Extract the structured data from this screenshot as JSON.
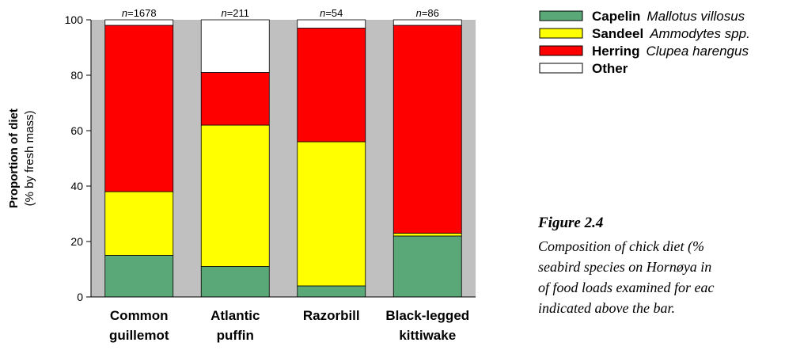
{
  "chart_data": {
    "type": "bar",
    "stacked": true,
    "categories": [
      [
        "Common",
        "guillemot"
      ],
      [
        "Atlantic",
        "puffin"
      ],
      [
        "Razorbill"
      ],
      [
        "Black-legged",
        "kittiwake"
      ]
    ],
    "sample_sizes": [
      "=1678",
      "=211",
      "=54",
      "=86"
    ],
    "n_prefix": "n",
    "series": [
      {
        "name": "Capelin",
        "latin": "Mallotus villosus",
        "color": "#5aa777",
        "values": [
          15,
          11,
          4,
          22
        ]
      },
      {
        "name": "Sandeel",
        "latin": "Ammodytes spp.",
        "color": "#ffff00",
        "values": [
          23,
          51,
          52,
          1
        ]
      },
      {
        "name": "Herring",
        "latin": "Clupea harengus",
        "color": "#ff0000",
        "values": [
          60,
          19,
          41,
          75
        ]
      },
      {
        "name": "Other",
        "latin": "",
        "color": "#ffffff",
        "values": [
          2,
          19,
          3,
          2
        ]
      }
    ],
    "ylabel_line1": "Proportion of diet",
    "ylabel_line2": "(% by fresh mass)",
    "ylim": [
      0,
      100
    ],
    "yticks": [
      0,
      20,
      40,
      60,
      80,
      100
    ],
    "grid": false,
    "legend_position": "top-right",
    "background_band_color": "#c0c0c0"
  },
  "caption": {
    "title": "Figure 2.4",
    "lines": [
      "Composition of chick diet (%",
      "seabird species on Hornøya in",
      "of food loads examined for eac",
      "indicated above the bar."
    ]
  }
}
